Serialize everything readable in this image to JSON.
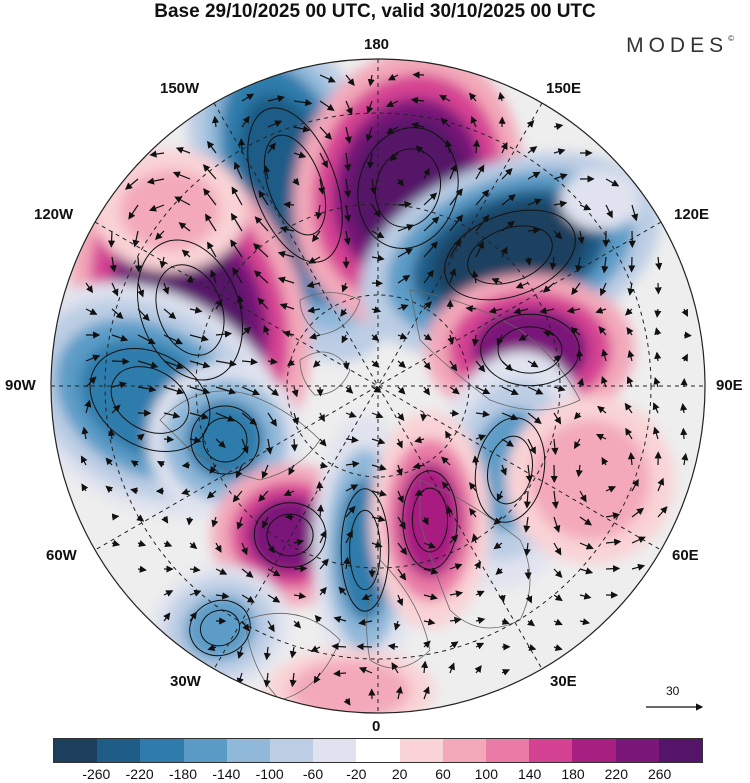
{
  "title": "Base 29/10/2025 00 UTC, valid 30/10/2025 00 UTC",
  "brand": "MODES",
  "brand_mark": "©",
  "longitudes": {
    "top": "180",
    "bottom": "0",
    "left": "90W",
    "right": "90E",
    "upper_left": "150W",
    "upper_right": "150E",
    "mid_left_upper": "120W",
    "mid_right_upper": "120E",
    "mid_left_lower": "60W",
    "mid_right_lower": "60E",
    "lower_left": "30W",
    "lower_right": "30E"
  },
  "vector_scale": {
    "label": "30"
  },
  "colorbar": {
    "ticks": [
      "-260",
      "-220",
      "-180",
      "-140",
      "-100",
      "-60",
      "-20",
      "20",
      "60",
      "100",
      "140",
      "180",
      "220",
      "260"
    ],
    "colors": [
      "#1c3f5e",
      "#1f5c86",
      "#2f7bab",
      "#5b9cc7",
      "#8fb8d9",
      "#bccde4",
      "#e0e3ef",
      "#ffffff",
      "#f9d3d6",
      "#f3a9ba",
      "#ea7aa6",
      "#d64293",
      "#a81f82",
      "#7a1779",
      "#541468"
    ]
  },
  "colors": {
    "land_contour": "#666666",
    "ocean": "#eeeeee"
  }
}
